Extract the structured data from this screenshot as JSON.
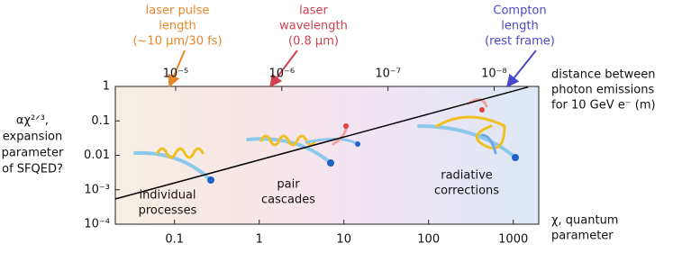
{
  "chart_data": {
    "type": "line",
    "x": [
      0.02,
      1500
    ],
    "values": [
      0.00054,
      0.96
    ],
    "color": "#000000",
    "xlim": [
      0.02,
      2000
    ],
    "xticks": [
      0.1,
      1,
      10,
      100,
      1000
    ],
    "xscale": "log",
    "ylim": [
      0.0001,
      1
    ],
    "yscale": "log",
    "yticks": [
      1,
      0.1,
      0.01,
      {
        "value": 0.001,
        "label": "10⁻³"
      },
      {
        "value": 0.0001,
        "label": "10⁻⁴"
      }
    ],
    "x2lim": [
      3.7e-05,
      3.8e-09
    ],
    "x2ticks": [
      {
        "value": 1e-05,
        "label": "10⁻⁵"
      },
      {
        "value": 1e-06,
        "label": "10⁻⁶"
      },
      {
        "value": 1e-07,
        "label": "10⁻⁷"
      },
      {
        "value": 1e-08,
        "label": "10⁻⁸"
      }
    ],
    "ylabel": [
      "αχ²ᐟ³,",
      "expansion",
      "parameter",
      "of SFQED?"
    ],
    "x2label": [
      "distance between",
      "photon emissions",
      "for 10 GeV e⁻ (m)"
    ],
    "xlabel": [
      "χ, quantum",
      "parameter"
    ],
    "annotations": [
      {
        "lines": [
          "laser pulse",
          "length",
          "(~10 μm/30 fs)"
        ],
        "color": "#e8862a"
      },
      {
        "lines": [
          "laser",
          "wavelength",
          "(0.8 μm)"
        ],
        "color": "#d0404e"
      },
      {
        "lines": [
          "Compton",
          "length",
          "(rest frame)"
        ],
        "color": "#4a48c8"
      }
    ],
    "regimes": [
      [
        "individual",
        "processes"
      ],
      [
        "pair",
        "cascades"
      ],
      [
        "radiative",
        "corrections"
      ]
    ]
  }
}
